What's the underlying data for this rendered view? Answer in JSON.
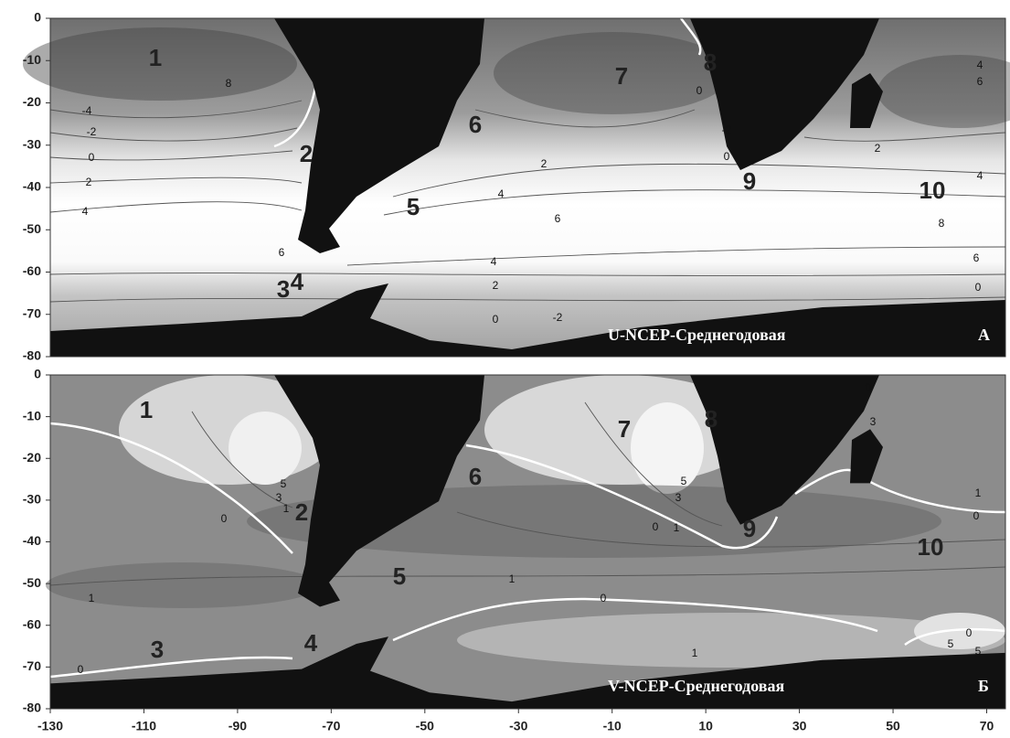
{
  "lonlim": [
    -130,
    74
  ],
  "latlim": [
    0,
    -80
  ],
  "xticks": [
    -130,
    -110,
    -90,
    -70,
    -50,
    -30,
    -10,
    10,
    30,
    50,
    70
  ],
  "panels": [
    {
      "title": "U-NCEP-Среднегодовая",
      "letter": "А",
      "yticks": [
        0,
        -10,
        -20,
        -30,
        -40,
        -50,
        -60,
        -70,
        -80
      ],
      "regions": [
        1,
        2,
        3,
        4,
        5,
        6,
        7,
        8,
        9,
        10
      ],
      "contour_labels": [
        8,
        -4,
        -2,
        0,
        2,
        4,
        6,
        2,
        4,
        6,
        8,
        4,
        2,
        0,
        -2,
        0,
        4,
        6,
        6,
        4,
        2,
        0,
        -2,
        0
      ]
    },
    {
      "title": "V-NCEP-Среднегодовая",
      "letter": "Б",
      "yticks": [
        0,
        -10,
        -20,
        -30,
        -40,
        -50,
        -60,
        -70,
        -80
      ],
      "regions": [
        1,
        2,
        3,
        4,
        5,
        6,
        7,
        8,
        9,
        10
      ],
      "contour_labels": [
        5,
        3,
        1,
        0,
        5,
        3,
        0,
        1,
        1,
        0,
        1,
        1,
        0,
        1,
        0,
        5,
        5,
        0,
        3,
        0
      ]
    }
  ]
}
